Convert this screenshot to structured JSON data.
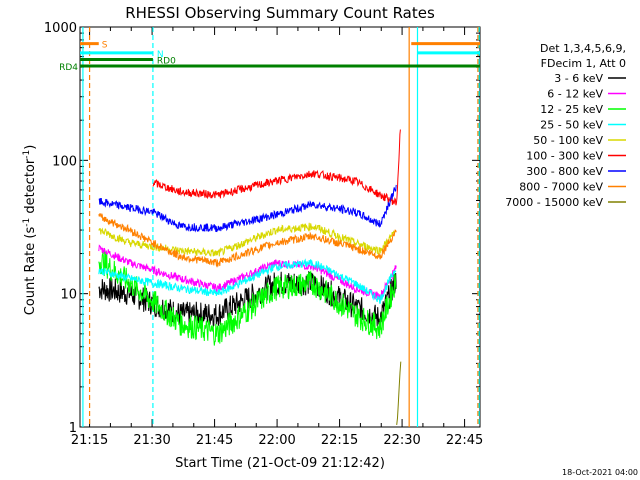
{
  "chart_data": {
    "type": "line",
    "title": "RHESSI Observing Summary Count Rates",
    "xlabel": "Start Time (21-Oct-09 21:12:42)",
    "ylabel_parts": [
      "Count Rate (s",
      "-1",
      " detector",
      "-1",
      ")"
    ],
    "y_scale": "log",
    "ylim": [
      1,
      1000
    ],
    "xlim_minutes": [
      0,
      96
    ],
    "x_ticks": [
      {
        "label": "21:15",
        "min": 2.3
      },
      {
        "label": "21:30",
        "min": 17.3
      },
      {
        "label": "21:45",
        "min": 32.3
      },
      {
        "label": "22:00",
        "min": 47.3
      },
      {
        "label": "22:15",
        "min": 62.3
      },
      {
        "label": "22:30",
        "min": 77.3
      },
      {
        "label": "22:45",
        "min": 92.3
      }
    ],
    "y_ticks": [
      {
        "label": "1",
        "value": 1
      },
      {
        "label": "10",
        "value": 10
      },
      {
        "label": "100",
        "value": 100
      },
      {
        "label": "1000",
        "value": 1000
      }
    ],
    "legend_header": [
      "Det 1,3,4,5,6,9,",
      "FDecim 1, Att 0"
    ],
    "legend_position": "right",
    "series": [
      {
        "name": "3 - 6 keV",
        "color": "#000000",
        "x": [
          4.5,
          12,
          24,
          33,
          47,
          56,
          66,
          72,
          76
        ],
        "y": [
          11,
          10,
          7,
          7,
          12,
          12,
          8,
          6.5,
          13
        ]
      },
      {
        "name": "6 - 12 keV",
        "color": "#ff00ff",
        "x": [
          4.5,
          12,
          24,
          33,
          47,
          56,
          66,
          72,
          76
        ],
        "y": [
          22,
          17,
          13,
          11,
          17,
          16,
          11,
          9.5,
          16
        ]
      },
      {
        "name": "12 - 25 keV",
        "color": "#00ff00",
        "x": [
          4.5,
          12,
          24,
          33,
          47,
          56,
          66,
          72,
          76
        ],
        "y": [
          18,
          12,
          6,
          5,
          11,
          12,
          7,
          5.5,
          13
        ]
      },
      {
        "name": "25 - 50 keV",
        "color": "#00ffff",
        "x": [
          4.5,
          12,
          24,
          33,
          47,
          56,
          66,
          72,
          76
        ],
        "y": [
          15,
          13,
          11,
          10,
          16,
          17,
          12,
          9,
          16
        ]
      },
      {
        "name": "50 - 100 keV",
        "color": "#d8d800",
        "x": [
          4.5,
          12,
          24,
          33,
          47,
          56,
          66,
          72,
          76
        ],
        "y": [
          30,
          24,
          21,
          20,
          30,
          32,
          24,
          21,
          30
        ]
      },
      {
        "name": "100 - 300 keV",
        "color": "#ff0000",
        "x": [
          17.5,
          24,
          33,
          47,
          56,
          66,
          72,
          76,
          77
        ],
        "y": [
          68,
          58,
          55,
          70,
          80,
          70,
          55,
          48,
          200
        ]
      },
      {
        "name": "300 - 800 keV",
        "color": "#0000ff",
        "x": [
          4.5,
          12,
          17.5,
          24,
          33,
          47,
          56,
          66,
          72,
          76
        ],
        "y": [
          49,
          44,
          41,
          32,
          31,
          39,
          47,
          41,
          33,
          65
        ]
      },
      {
        "name": "800 - 7000 keV",
        "color": "#ff8000",
        "x": [
          4.5,
          12,
          17.5,
          24,
          33,
          47,
          56,
          66,
          72,
          76
        ],
        "y": [
          38,
          30,
          24,
          19,
          17,
          24,
          27,
          22,
          19,
          30
        ]
      },
      {
        "name": "7000 - 15000 keV",
        "color": "#808000",
        "x": [
          76,
          77
        ],
        "y": [
          1,
          3
        ]
      }
    ],
    "flags": [
      {
        "label": "S",
        "color": "#ff8000",
        "x_start": 0,
        "x_end": 4.5,
        "x_start2": 79.5,
        "x_end2": 96,
        "y": 750
      },
      {
        "label": "N",
        "color": "#00ffff",
        "x_start": 0,
        "x_end": 17.5,
        "x_start2": 81,
        "x_end2": 96,
        "y": 640
      },
      {
        "label": "RD0",
        "color": "#008000",
        "x_start": 0,
        "x_end": 17.5,
        "y": 570
      },
      {
        "label": "RD4",
        "color": "#008000",
        "x_start": 0,
        "x_end": 96,
        "y": 510
      }
    ],
    "vertical_lines": [
      {
        "x": 0.7,
        "color": "#00ffff",
        "style": "solid"
      },
      {
        "x": 2.3,
        "color": "#ff8000",
        "style": "dashed"
      },
      {
        "x": 17.5,
        "color": "#00ffff",
        "style": "dashed"
      },
      {
        "x": 79,
        "color": "#ff8000",
        "style": "solid"
      },
      {
        "x": 81,
        "color": "#00ffff",
        "style": "solid"
      },
      {
        "x": 95.5,
        "color": "#ff8000",
        "style": "dashed"
      },
      {
        "x": 95.8,
        "color": "#00ffff",
        "style": "dashed"
      }
    ],
    "footer": "18-Oct-2021 04:00"
  }
}
